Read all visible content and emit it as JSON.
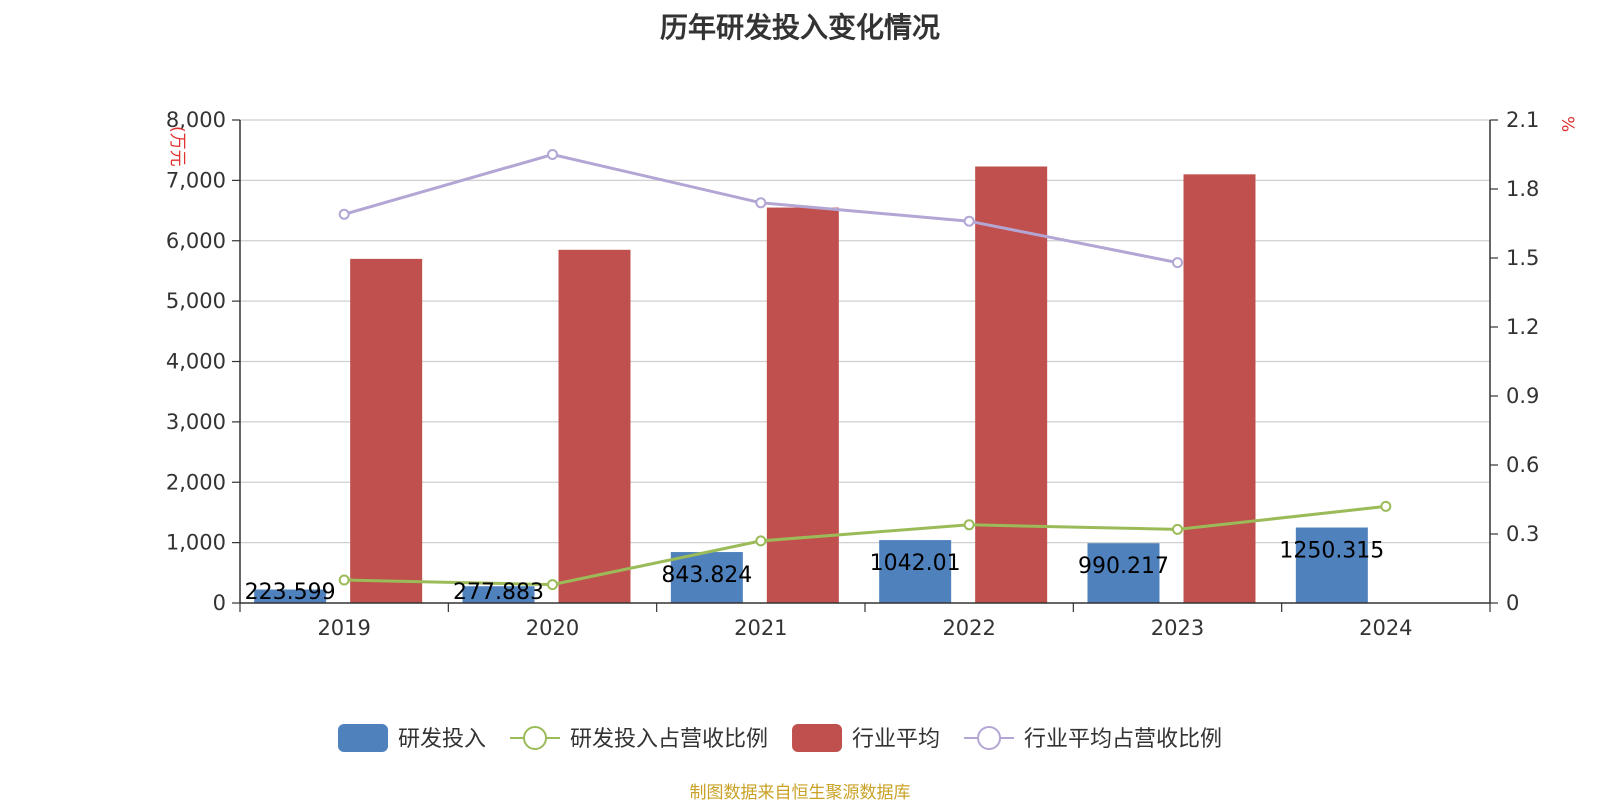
{
  "chart_data": {
    "type": "bar",
    "title": "历年研发投入变化情况",
    "categories": [
      "2019",
      "2020",
      "2021",
      "2022",
      "2023",
      "2024"
    ],
    "y_left": {
      "unit_label": "(万元",
      "ylim": [
        0,
        8000
      ],
      "ticks": [
        "0",
        "1,000",
        "2,000",
        "3,000",
        "4,000",
        "5,000",
        "6,000",
        "7,000",
        "8,000"
      ]
    },
    "y_right": {
      "unit_label": "%",
      "ylim": [
        0,
        2.1
      ],
      "ticks": [
        "0",
        "0.3",
        "0.6",
        "0.9",
        "1.2",
        "1.5",
        "1.8",
        "2.1"
      ]
    },
    "series": [
      {
        "name": "研发投入",
        "type": "bar",
        "axis": "left",
        "color": "#4f81bd",
        "values": [
          223.599,
          277.883,
          843.824,
          1042.01,
          990.217,
          1250.315
        ],
        "labels": [
          "223.599",
          "277.883",
          "843.824",
          "1042.01",
          "990.217",
          "1250.315"
        ]
      },
      {
        "name": "研发投入占营收比例",
        "type": "line",
        "axis": "right",
        "color": "#9bbb59",
        "values": [
          0.1,
          0.08,
          0.27,
          0.34,
          0.32,
          0.42
        ]
      },
      {
        "name": "行业平均",
        "type": "bar",
        "axis": "left",
        "color": "#c0504d",
        "values": [
          5700,
          5850,
          6550,
          7230,
          7100,
          null
        ]
      },
      {
        "name": "行业平均占营收比例",
        "type": "line",
        "axis": "right",
        "color": "#b3a6d4",
        "values": [
          1.69,
          1.95,
          1.74,
          1.66,
          1.48,
          null
        ]
      }
    ],
    "grid": true,
    "legend_position": "bottom"
  },
  "source_text": "制图数据来自恒生聚源数据库"
}
